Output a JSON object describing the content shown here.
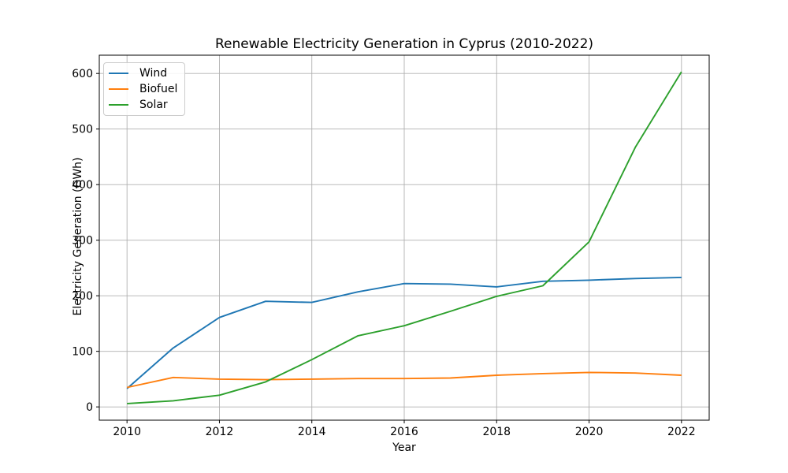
{
  "figure": {
    "background": "#ffffff"
  },
  "chart_data": {
    "type": "line",
    "title": "Renewable Electricity Generation in Cyprus (2010-2022)",
    "xlabel": "Year",
    "ylabel": "Electricity Generation (GWh)",
    "x": [
      2010,
      2011,
      2012,
      2013,
      2014,
      2015,
      2016,
      2017,
      2018,
      2019,
      2020,
      2021,
      2022
    ],
    "series": [
      {
        "name": "Wind",
        "color": "#1f77b4",
        "values": [
          33,
          106,
          161,
          190,
          188,
          207,
          222,
          221,
          216,
          226,
          228,
          231,
          233
        ]
      },
      {
        "name": "Biofuel",
        "color": "#ff7f0e",
        "values": [
          35,
          53,
          50,
          49,
          50,
          51,
          51,
          52,
          57,
          60,
          62,
          61,
          57
        ]
      },
      {
        "name": "Solar",
        "color": "#2ca02c",
        "values": [
          6,
          11,
          21,
          45,
          85,
          128,
          146,
          172,
          199,
          218,
          297,
          467,
          603
        ]
      }
    ],
    "xticks": [
      2010,
      2012,
      2014,
      2016,
      2018,
      2020,
      2022
    ],
    "yticks": [
      0,
      100,
      200,
      300,
      400,
      500,
      600
    ],
    "xlim": [
      2009.4,
      2022.6
    ],
    "ylim": [
      -23.9,
      632.9
    ],
    "grid": true,
    "legend_position": "upper left",
    "colors": {
      "grid": "#b0b0b0",
      "spine": "#000000",
      "text": "#000000"
    }
  }
}
